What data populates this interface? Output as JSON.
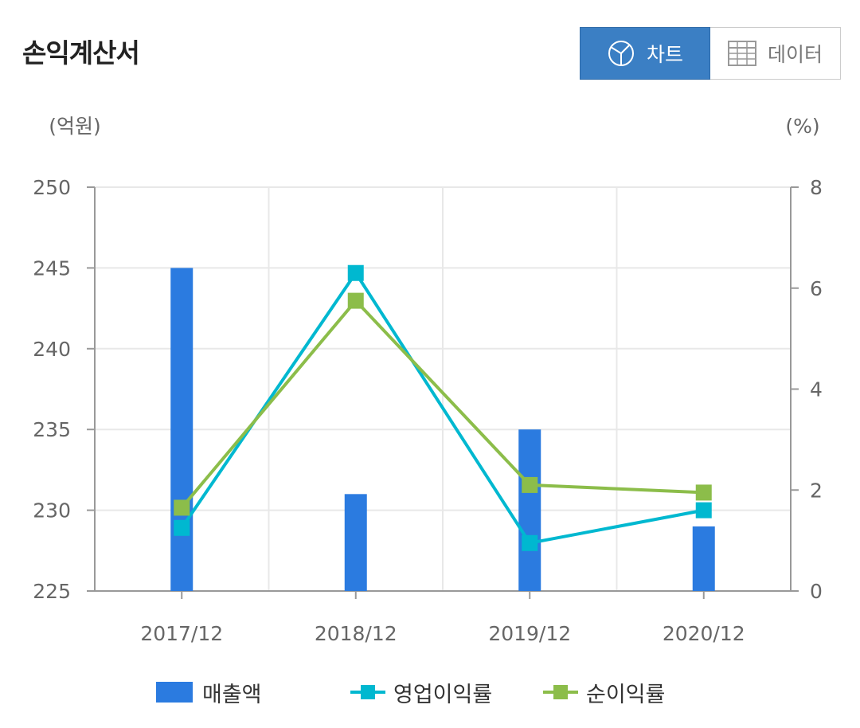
{
  "header": {
    "title": "손익계산서",
    "chart_button_label": "차트",
    "data_button_label": "데이터",
    "chart_icon": "pie-chart-icon",
    "data_icon": "table-grid-icon"
  },
  "colors": {
    "bar": "#2b7be0",
    "operating": "#00b8d0",
    "net": "#8cbd4a",
    "axis": "#999999",
    "grid": "#e8e8e8",
    "tick_text": "#666666"
  },
  "chart_data": {
    "type": "bar",
    "categories": [
      "2017/12",
      "2018/12",
      "2019/12",
      "2020/12"
    ],
    "left_axis": {
      "unit_label": "(억원)",
      "ylim": [
        225,
        250
      ],
      "ticks": [
        225,
        230,
        235,
        240,
        245,
        250
      ]
    },
    "right_axis": {
      "unit_label": "(%)",
      "ylim": [
        0,
        8
      ],
      "ticks": [
        0,
        2,
        4,
        6,
        8
      ]
    },
    "series": [
      {
        "name": "매출액",
        "type": "bar",
        "axis": "left",
        "values": [
          245,
          231,
          235,
          229
        ]
      },
      {
        "name": "영업이익률",
        "type": "line",
        "axis": "right",
        "values": [
          1.25,
          6.3,
          0.95,
          1.6
        ]
      },
      {
        "name": "순이익률",
        "type": "line",
        "axis": "right",
        "values": [
          1.65,
          5.75,
          2.1,
          1.95
        ]
      }
    ],
    "grid": true,
    "legend_position": "bottom"
  }
}
